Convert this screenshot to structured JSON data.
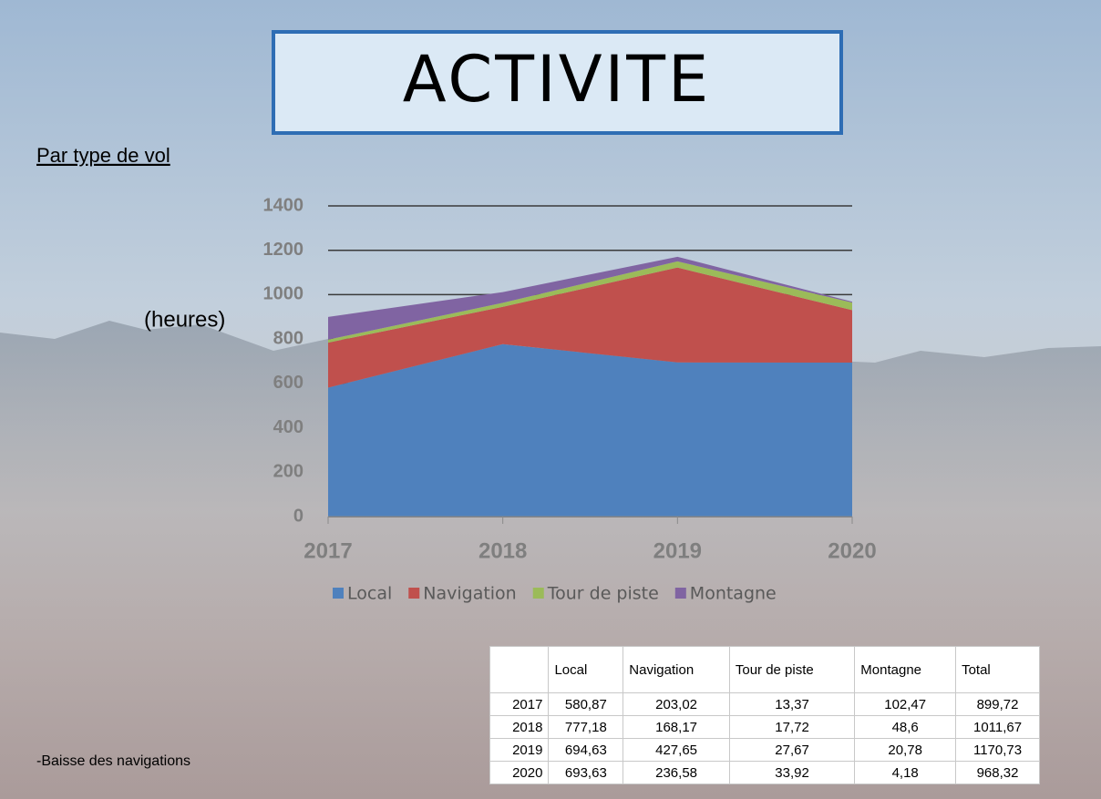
{
  "title": "ACTIVITE",
  "subtitle": "Par type de vol",
  "note": "-Baisse des navigations",
  "chart_data": {
    "type": "area",
    "stacked": true,
    "y_label": "(heures)",
    "categories": [
      "2017",
      "2018",
      "2019",
      "2020"
    ],
    "series": [
      {
        "name": "Local",
        "color": "#4f81bd",
        "values": [
          580.87,
          777.18,
          694.63,
          693.63
        ]
      },
      {
        "name": "Navigation",
        "color": "#c0504d",
        "values": [
          203.02,
          168.17,
          427.65,
          236.58
        ]
      },
      {
        "name": "Tour de piste",
        "color": "#9bbb59",
        "values": [
          13.37,
          17.72,
          27.67,
          33.92
        ]
      },
      {
        "name": "Montagne",
        "color": "#8064a2",
        "values": [
          102.47,
          48.6,
          20.78,
          4.18
        ]
      }
    ],
    "ylim": [
      0,
      1400
    ],
    "yticks": [
      0,
      200,
      400,
      600,
      800,
      1000,
      1200,
      1400
    ],
    "grid": true,
    "legend": "bottom"
  },
  "table": {
    "header": [
      "Local",
      "Navigation",
      "Tour de piste",
      "Montagne",
      "Total"
    ],
    "rows": [
      [
        "2017",
        "580,87",
        "203,02",
        "13,37",
        "102,47",
        "899,72"
      ],
      [
        "2018",
        "777,18",
        "168,17",
        "17,72",
        "48,6",
        "1011,67"
      ],
      [
        "2019",
        "694,63",
        "427,65",
        "27,67",
        "20,78",
        "1170,73"
      ],
      [
        "2020",
        "693,63",
        "236,58",
        "33,92",
        "4,18",
        "968,32"
      ]
    ]
  }
}
